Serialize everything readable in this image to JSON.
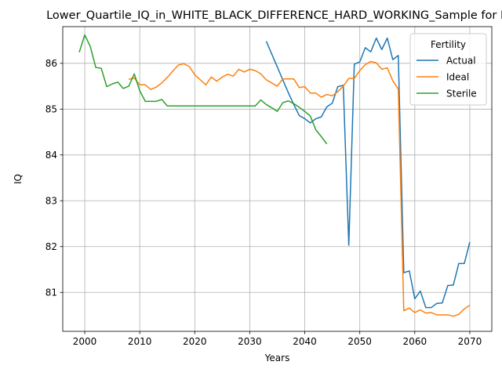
{
  "chart_data": {
    "type": "line",
    "title": "Lower_Quartile_IQ_in_WHITE_BLACK_DIFFERENCE_HARD_WORKING_Sample for B",
    "xlabel": "Years",
    "ylabel": "IQ",
    "xlim": [
      1996,
      2074
    ],
    "ylim": [
      80.15,
      86.8
    ],
    "x_ticks": [
      2000,
      2010,
      2020,
      2030,
      2040,
      2050,
      2060,
      2070
    ],
    "y_ticks": [
      81,
      82,
      83,
      84,
      85,
      86
    ],
    "grid": true,
    "legend": {
      "title": "Fertility",
      "placement": "top-right"
    },
    "series": [
      {
        "name": "Actual",
        "color": "#1f77b4",
        "x": [
          2033,
          2034,
          2035,
          2036,
          2037,
          2038,
          2039,
          2040,
          2041,
          2042,
          2043,
          2044,
          2045,
          2046,
          2047,
          2048,
          2049,
          2050,
          2051,
          2052,
          2053,
          2054,
          2055,
          2056,
          2057,
          2058,
          2059,
          2060,
          2061,
          2062,
          2063,
          2064,
          2065,
          2066,
          2067,
          2068,
          2069,
          2070
        ],
        "y": [
          86.48,
          86.2,
          85.92,
          85.64,
          85.36,
          85.1,
          84.86,
          84.79,
          84.7,
          84.79,
          84.83,
          85.05,
          85.13,
          85.49,
          85.52,
          82.03,
          85.98,
          86.03,
          86.34,
          86.25,
          86.55,
          86.3,
          86.55,
          86.08,
          86.17,
          81.43,
          81.47,
          80.86,
          81.03,
          80.67,
          80.67,
          80.76,
          80.77,
          81.15,
          81.16,
          81.63,
          81.63,
          82.1
        ]
      },
      {
        "name": "Ideal",
        "color": "#ff7f0e",
        "x": [
          2008,
          2009,
          2010,
          2011,
          2012,
          2013,
          2014,
          2015,
          2016,
          2017,
          2018,
          2019,
          2020,
          2021,
          2022,
          2023,
          2024,
          2025,
          2026,
          2027,
          2028,
          2029,
          2030,
          2031,
          2032,
          2033,
          2034,
          2035,
          2036,
          2037,
          2038,
          2039,
          2040,
          2041,
          2042,
          2043,
          2044,
          2045,
          2046,
          2047,
          2048,
          2049,
          2050,
          2051,
          2052,
          2053,
          2054,
          2055,
          2056,
          2057,
          2058,
          2059,
          2060,
          2061,
          2062,
          2063,
          2064,
          2065,
          2066,
          2067,
          2068,
          2069,
          2070
        ],
        "y": [
          85.65,
          85.68,
          85.53,
          85.53,
          85.43,
          85.48,
          85.57,
          85.69,
          85.83,
          85.96,
          85.99,
          85.93,
          85.75,
          85.64,
          85.53,
          85.7,
          85.61,
          85.7,
          85.76,
          85.72,
          85.87,
          85.81,
          85.87,
          85.84,
          85.77,
          85.64,
          85.57,
          85.5,
          85.66,
          85.66,
          85.66,
          85.47,
          85.49,
          85.35,
          85.35,
          85.26,
          85.32,
          85.29,
          85.38,
          85.5,
          85.67,
          85.67,
          85.84,
          85.97,
          86.04,
          86.01,
          85.87,
          85.9,
          85.62,
          85.44,
          80.6,
          80.66,
          80.56,
          80.62,
          80.55,
          80.56,
          80.51,
          80.51,
          80.51,
          80.48,
          80.52,
          80.64,
          80.72
        ]
      },
      {
        "name": "Sterile",
        "color": "#2ca02c",
        "x": [
          1999,
          2000,
          2001,
          2002,
          2003,
          2004,
          2005,
          2006,
          2007,
          2008,
          2009,
          2010,
          2011,
          2012,
          2013,
          2014,
          2015,
          2016,
          2017,
          2018,
          2019,
          2020,
          2021,
          2022,
          2023,
          2024,
          2025,
          2026,
          2027,
          2028,
          2029,
          2030,
          2031,
          2032,
          2033,
          2034,
          2035,
          2036,
          2037,
          2038,
          2039,
          2040,
          2041,
          2042,
          2043,
          2044
        ],
        "y": [
          86.24,
          86.62,
          86.37,
          85.91,
          85.89,
          85.49,
          85.55,
          85.59,
          85.45,
          85.5,
          85.77,
          85.4,
          85.17,
          85.17,
          85.17,
          85.21,
          85.07,
          85.07,
          85.07,
          85.07,
          85.07,
          85.07,
          85.07,
          85.07,
          85.07,
          85.07,
          85.07,
          85.07,
          85.07,
          85.07,
          85.07,
          85.07,
          85.07,
          85.2,
          85.1,
          85.03,
          84.95,
          85.14,
          85.18,
          85.12,
          85.04,
          84.95,
          84.85,
          84.55,
          84.4,
          84.24
        ]
      }
    ]
  }
}
